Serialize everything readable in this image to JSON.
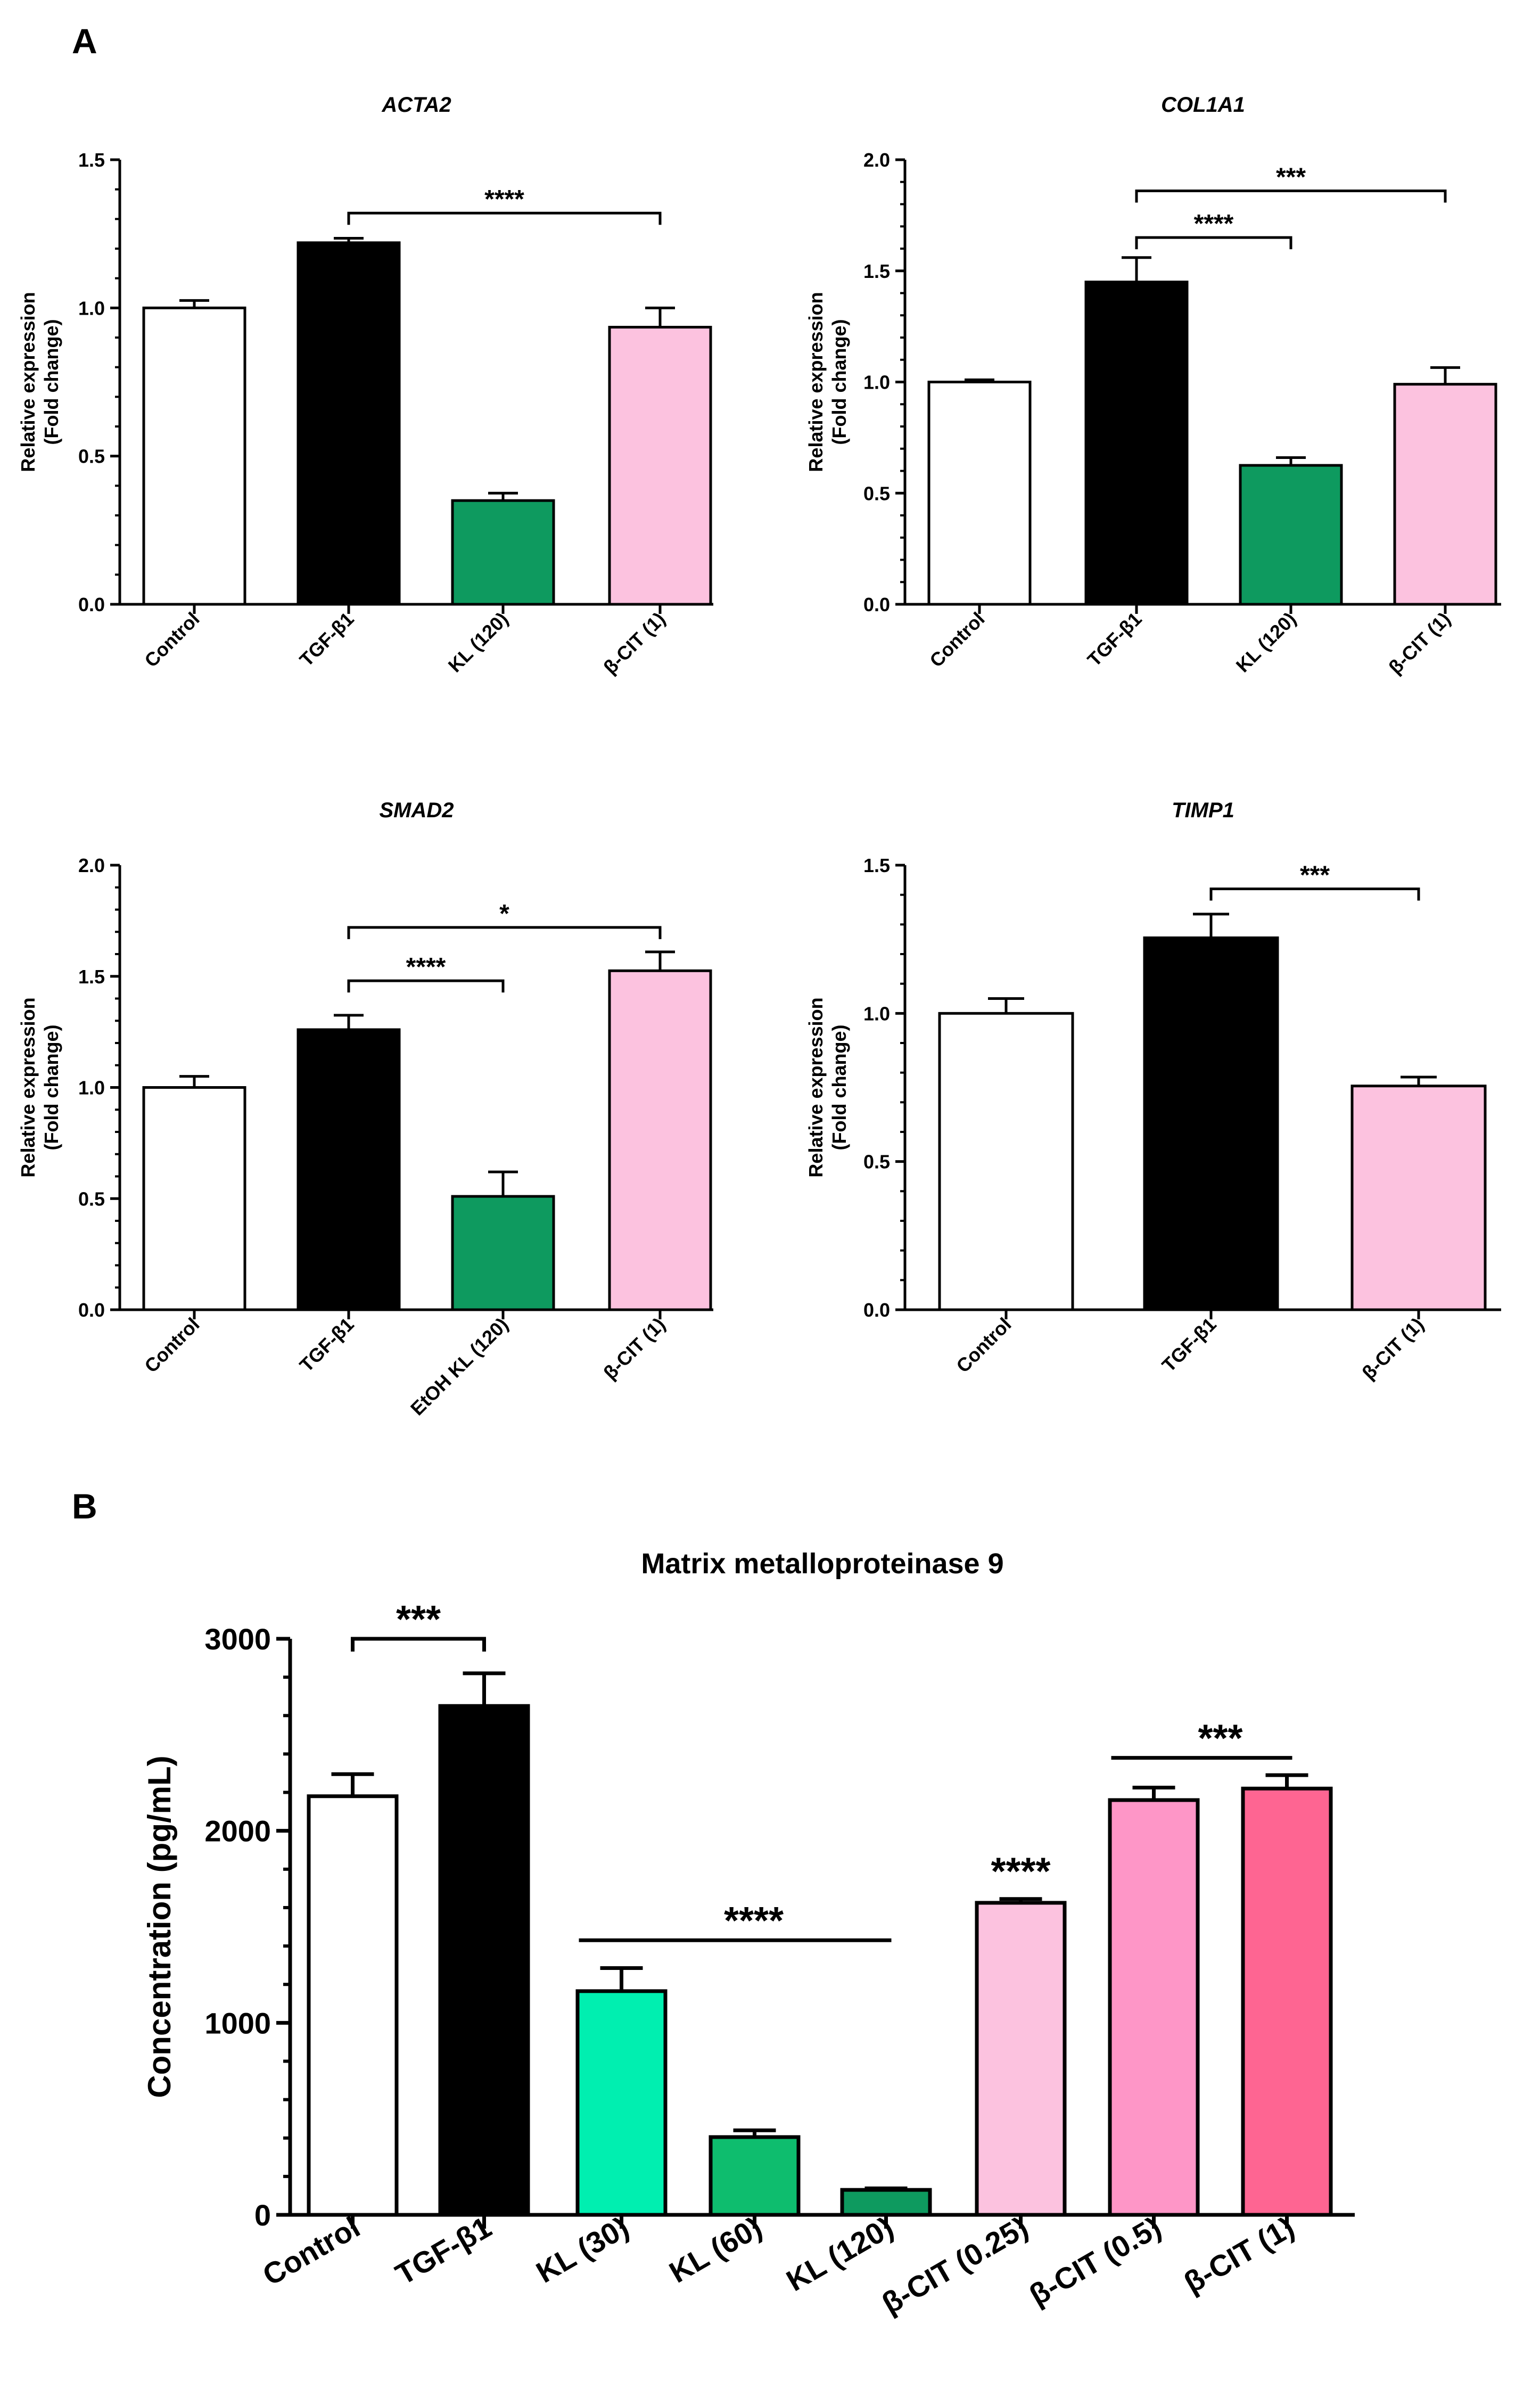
{
  "figure": {
    "panel_a_label": "A",
    "panel_b_label": "B"
  },
  "colors": {
    "white": "#ffffff",
    "black": "#000000",
    "green": "#0e9a5f",
    "pink": "#fcc2df",
    "mint": "#00efb0",
    "mid_green": "#0ebd6e",
    "mid_pink": "#fe96c7",
    "hot_pink": "#fe6592"
  },
  "chart_data": [
    {
      "type": "bar",
      "panel": "A",
      "title": "ACTA2",
      "ylabel_line1": "Relative expression",
      "ylabel_line2": "(Fold change)",
      "categories": [
        "Control",
        "TGF-β1",
        "KL (120)",
        "β-CIT (1)"
      ],
      "values": [
        1.0,
        1.22,
        0.35,
        0.935
      ],
      "errors": [
        0.025,
        0.015,
        0.025,
        0.065
      ],
      "colors": [
        "#ffffff",
        "#000000",
        "#0e9a5f",
        "#fcc2df"
      ],
      "ylim": [
        0,
        1.5
      ],
      "yticks": [
        "0.0",
        "0.5",
        "1.0",
        "1.5"
      ],
      "ytick_values": [
        0,
        0.5,
        1.0,
        1.5
      ],
      "significance": [
        {
          "from": 1,
          "to": 3,
          "y": 1.32,
          "label": "****"
        }
      ]
    },
    {
      "type": "bar",
      "panel": "A",
      "title": "COL1A1",
      "ylabel_line1": "Relative expression",
      "ylabel_line2": "(Fold change)",
      "categories": [
        "Control",
        "TGF-β1",
        "KL (120)",
        "β-CIT (1)"
      ],
      "values": [
        1.0,
        1.45,
        0.625,
        0.99
      ],
      "errors": [
        0.01,
        0.11,
        0.035,
        0.075
      ],
      "colors": [
        "#ffffff",
        "#000000",
        "#0e9a5f",
        "#fcc2df"
      ],
      "ylim": [
        0,
        2.0
      ],
      "yticks": [
        "0.0",
        "0.5",
        "1.0",
        "1.5",
        "2.0"
      ],
      "ytick_values": [
        0,
        0.5,
        1.0,
        1.5,
        2.0
      ],
      "significance": [
        {
          "from": 1,
          "to": 2,
          "y": 1.65,
          "label": "****"
        },
        {
          "from": 1,
          "to": 3,
          "y": 1.86,
          "label": "***"
        }
      ]
    },
    {
      "type": "bar",
      "panel": "A",
      "title": "SMAD2",
      "ylabel_line1": "Relative expression",
      "ylabel_line2": "(Fold change)",
      "categories": [
        "Control",
        "TGF-β1",
        "EtOH KL (120)",
        "β-CIT (1)"
      ],
      "values": [
        1.0,
        1.26,
        0.51,
        1.525
      ],
      "errors": [
        0.05,
        0.065,
        0.11,
        0.085
      ],
      "colors": [
        "#ffffff",
        "#000000",
        "#0e9a5f",
        "#fcc2df"
      ],
      "ylim": [
        0,
        2.0
      ],
      "yticks": [
        "0.0",
        "0.5",
        "1.0",
        "1.5",
        "2.0"
      ],
      "ytick_values": [
        0,
        0.5,
        1.0,
        1.5,
        2.0
      ],
      "significance": [
        {
          "from": 1,
          "to": 2,
          "y": 1.48,
          "label": "****"
        },
        {
          "from": 1,
          "to": 3,
          "y": 1.72,
          "label": "*"
        }
      ]
    },
    {
      "type": "bar",
      "panel": "A",
      "title": "TIMP1",
      "ylabel_line1": "Relative expression",
      "ylabel_line2": "(Fold change)",
      "categories": [
        "Control",
        "TGF-β1",
        "β-CIT (1)"
      ],
      "values": [
        1.0,
        1.255,
        0.755
      ],
      "errors": [
        0.05,
        0.08,
        0.03
      ],
      "colors": [
        "#ffffff",
        "#000000",
        "#fcc2df"
      ],
      "ylim": [
        0,
        1.5
      ],
      "yticks": [
        "0.0",
        "0.5",
        "1.0",
        "1.5"
      ],
      "ytick_values": [
        0,
        0.5,
        1.0,
        1.5
      ],
      "significance": [
        {
          "from": 1,
          "to": 2,
          "y": 1.42,
          "label": "***"
        }
      ]
    },
    {
      "type": "bar",
      "panel": "B",
      "title": "Matrix metalloproteinase 9",
      "ylabel_line1": "Concentration (pg/mL)",
      "ylabel_line2": "",
      "categories": [
        "Control",
        "TGF-β1",
        "KL (30)",
        "KL (60)",
        "KL (120)",
        "β-CIT (0.25)",
        "β-CIT (0.5)",
        "β-CIT (1)"
      ],
      "values": [
        2180,
        2650,
        1165,
        405,
        130,
        1625,
        2160,
        2220
      ],
      "errors": [
        115,
        170,
        120,
        35,
        8,
        20,
        65,
        70
      ],
      "colors": [
        "#ffffff",
        "#000000",
        "#00efb0",
        "#0ebd6e",
        "#0e9a5f",
        "#fcc2df",
        "#fe96c7",
        "#fe6592"
      ],
      "ylim": [
        0,
        3000
      ],
      "yticks": [
        "0",
        "1000",
        "2000",
        "3000"
      ],
      "ytick_values": [
        0,
        1000,
        2000,
        3000
      ],
      "significance": [
        {
          "from": 0,
          "to": 1,
          "y": 3000,
          "label": "***",
          "style": "bracket"
        },
        {
          "from": 2,
          "to": 4,
          "y": 1430,
          "label": "****",
          "style": "line"
        },
        {
          "from": 5,
          "to": 5,
          "y": 1720,
          "label": "****",
          "style": "text"
        },
        {
          "from": 6,
          "to": 7,
          "y": 2380,
          "label": "***",
          "style": "line"
        }
      ]
    }
  ]
}
